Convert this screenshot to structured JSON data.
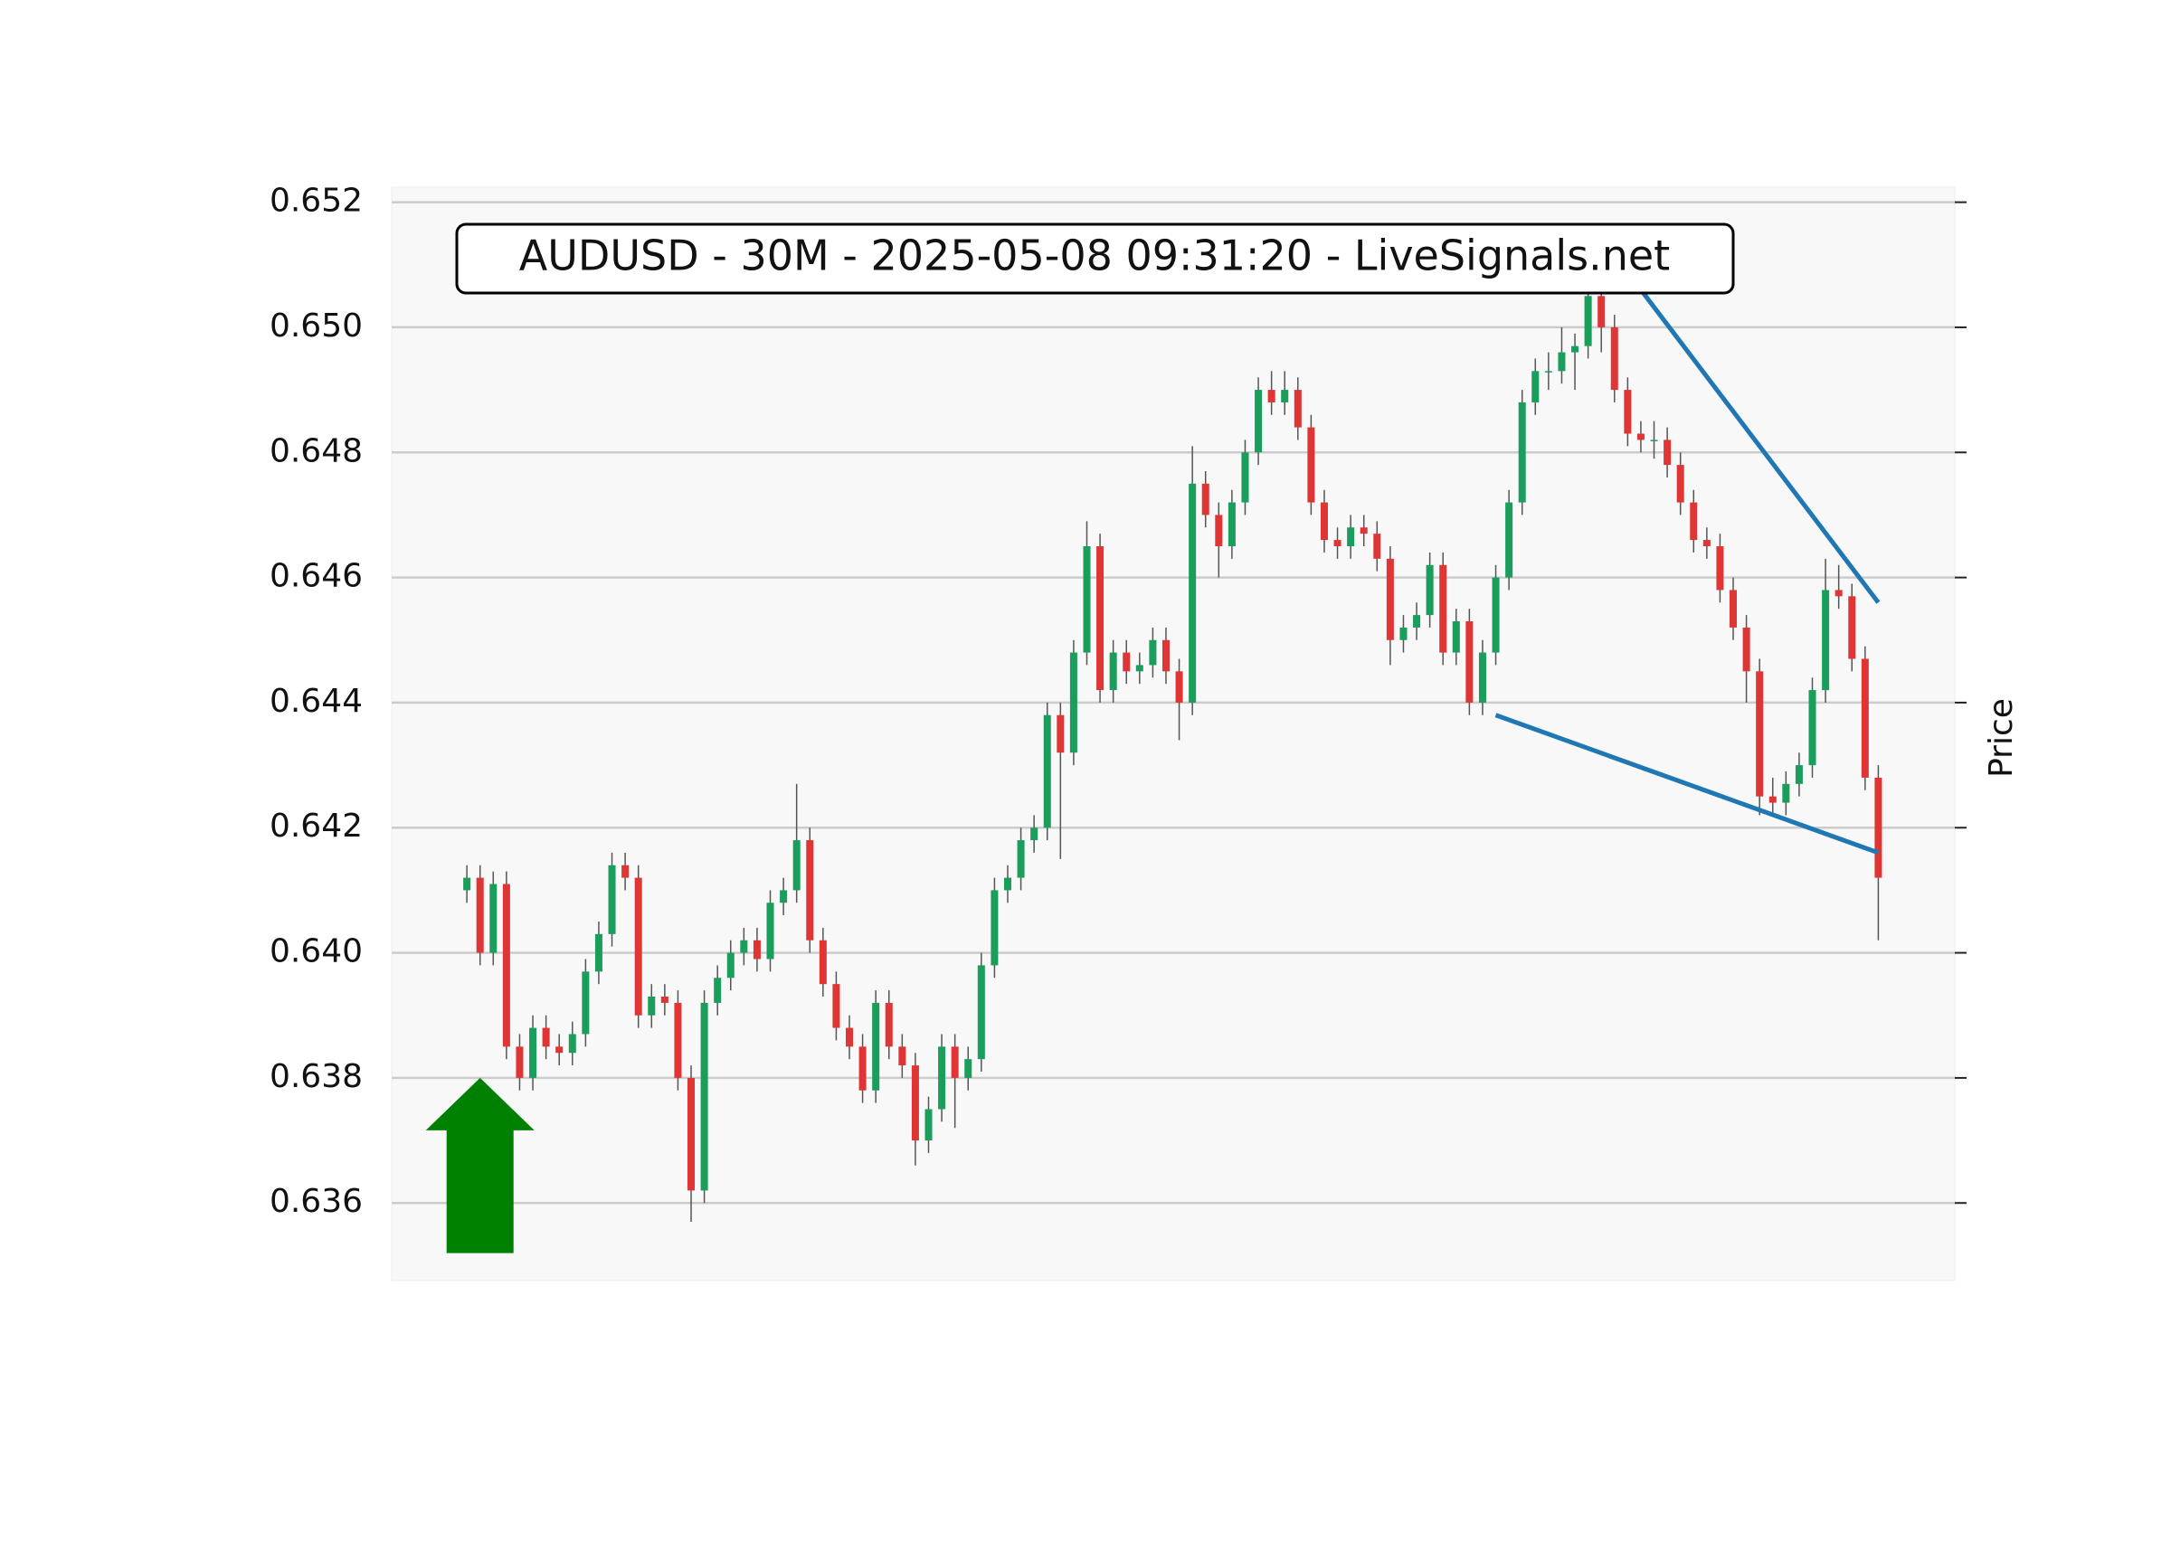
{
  "chart_data": {
    "type": "candlestick",
    "title": "AUDUSD - 30M - 2025-05-08 09:31:20 - LiveSignals.net",
    "y_label": "Price",
    "ylim": [
      0.63476,
      0.65224
    ],
    "yticks": [
      0.636,
      0.638,
      {
        "value": 0.64,
        "label": "0.640"
      },
      0.642,
      0.644,
      0.646,
      0.648,
      {
        "value": 0.65,
        "label": "0.650"
      },
      0.652
    ],
    "xlim": [
      -5.7,
      112.8
    ],
    "grid": true,
    "up_color": "#1a9e5c",
    "down_color": "#e03535",
    "wick_color": "#555555",
    "open": [
      0.641,
      0.6412,
      0.64,
      0.6411,
      0.6385,
      0.638,
      0.6388,
      0.6385,
      0.6384,
      0.6387,
      0.6397,
      0.6403,
      0.6414,
      0.6412,
      0.639,
      0.6393,
      0.6392,
      0.638,
      0.6362,
      0.6392,
      0.6396,
      0.64,
      0.6402,
      0.6399,
      0.6408,
      0.641,
      0.6418,
      0.6402,
      0.6395,
      0.6388,
      0.6385,
      0.6378,
      0.6392,
      0.6385,
      0.6382,
      0.637,
      0.6375,
      0.6385,
      0.638,
      0.6383,
      0.6398,
      0.641,
      0.6412,
      0.6418,
      0.642,
      0.6438,
      0.6432,
      0.6448,
      0.6465,
      0.6442,
      0.6448,
      0.6445,
      0.6446,
      0.645,
      0.6445,
      0.644,
      0.6475,
      0.647,
      0.6465,
      0.6472,
      0.648,
      0.649,
      0.6488,
      0.649,
      0.6484,
      0.6472,
      0.6466,
      0.6465,
      0.6468,
      0.6467,
      0.6463,
      0.645,
      0.6452,
      0.6454,
      0.6462,
      0.6448,
      0.6453,
      0.644,
      0.6448,
      0.646,
      0.6472,
      0.6488,
      0.6493,
      0.6493,
      0.6496,
      0.6497,
      0.6505,
      0.65,
      0.649,
      0.6483,
      0.6482,
      0.6482,
      0.6478,
      0.6472,
      0.6466,
      0.6465,
      0.6458,
      0.6452,
      0.6445,
      0.6425,
      0.6424,
      0.6427,
      0.643,
      0.6442,
      0.6458,
      0.6457,
      0.6447,
      0.6428
    ],
    "high": [
      0.6414,
      0.6414,
      0.6413,
      0.6413,
      0.6387,
      0.639,
      0.639,
      0.6387,
      0.6389,
      0.6399,
      0.6405,
      0.6416,
      0.6416,
      0.6414,
      0.6395,
      0.6395,
      0.6394,
      0.6382,
      0.6394,
      0.6398,
      0.6402,
      0.6404,
      0.6404,
      0.641,
      0.6412,
      0.6427,
      0.642,
      0.6404,
      0.6397,
      0.639,
      0.6387,
      0.6394,
      0.6394,
      0.6387,
      0.6384,
      0.6377,
      0.6387,
      0.6387,
      0.6385,
      0.64,
      0.6412,
      0.6414,
      0.642,
      0.6422,
      0.644,
      0.644,
      0.645,
      0.6469,
      0.6467,
      0.645,
      0.645,
      0.6448,
      0.6452,
      0.6452,
      0.6447,
      0.6481,
      0.6477,
      0.6472,
      0.6474,
      0.6482,
      0.6492,
      0.6493,
      0.6493,
      0.6492,
      0.6486,
      0.6474,
      0.6468,
      0.647,
      0.647,
      0.6469,
      0.6465,
      0.6454,
      0.6456,
      0.6464,
      0.6464,
      0.6455,
      0.6455,
      0.645,
      0.6462,
      0.6474,
      0.649,
      0.6495,
      0.6496,
      0.65,
      0.6499,
      0.651,
      0.6508,
      0.6502,
      0.6492,
      0.6485,
      0.6485,
      0.6484,
      0.648,
      0.6474,
      0.6468,
      0.6467,
      0.646,
      0.6454,
      0.6447,
      0.6428,
      0.6429,
      0.6432,
      0.6444,
      0.6463,
      0.6462,
      0.6459,
      0.6449,
      0.643
    ],
    "low": [
      0.6408,
      0.6398,
      0.6398,
      0.6383,
      0.6378,
      0.6378,
      0.6383,
      0.6382,
      0.6382,
      0.6385,
      0.6395,
      0.6401,
      0.641,
      0.6388,
      0.6388,
      0.639,
      0.6378,
      0.6357,
      0.636,
      0.639,
      0.6394,
      0.6398,
      0.6397,
      0.6397,
      0.6406,
      0.6408,
      0.64,
      0.6393,
      0.6386,
      0.6383,
      0.6376,
      0.6376,
      0.6383,
      0.638,
      0.6366,
      0.6368,
      0.6373,
      0.6372,
      0.6378,
      0.6381,
      0.6396,
      0.6408,
      0.641,
      0.6416,
      0.6418,
      0.6415,
      0.643,
      0.6446,
      0.644,
      0.644,
      0.6443,
      0.6443,
      0.6444,
      0.6443,
      0.6434,
      0.6438,
      0.6468,
      0.646,
      0.6463,
      0.647,
      0.6478,
      0.6486,
      0.6486,
      0.6482,
      0.647,
      0.6464,
      0.6463,
      0.6463,
      0.6465,
      0.6461,
      0.6446,
      0.6448,
      0.645,
      0.6452,
      0.6446,
      0.6446,
      0.6438,
      0.6438,
      0.6446,
      0.6458,
      0.647,
      0.6486,
      0.649,
      0.6491,
      0.649,
      0.6495,
      0.6496,
      0.6488,
      0.6481,
      0.648,
      0.6479,
      0.6476,
      0.647,
      0.6464,
      0.6463,
      0.6456,
      0.645,
      0.644,
      0.6422,
      0.6422,
      0.6422,
      0.6425,
      0.6428,
      0.644,
      0.6455,
      0.6445,
      0.6426,
      0.6402
    ],
    "close": [
      0.6412,
      0.64,
      0.6411,
      0.6385,
      0.638,
      0.6388,
      0.6385,
      0.6384,
      0.6387,
      0.6397,
      0.6403,
      0.6414,
      0.6412,
      0.639,
      0.6393,
      0.6392,
      0.638,
      0.6362,
      0.6392,
      0.6396,
      0.64,
      0.6402,
      0.6399,
      0.6408,
      0.641,
      0.6418,
      0.6402,
      0.6395,
      0.6388,
      0.6385,
      0.6378,
      0.6392,
      0.6385,
      0.6382,
      0.637,
      0.6375,
      0.6385,
      0.638,
      0.6383,
      0.6398,
      0.641,
      0.6412,
      0.6418,
      0.642,
      0.6438,
      0.6432,
      0.6448,
      0.6465,
      0.6442,
      0.6448,
      0.6445,
      0.6446,
      0.645,
      0.6445,
      0.644,
      0.6475,
      0.647,
      0.6465,
      0.6472,
      0.648,
      0.649,
      0.6488,
      0.649,
      0.6484,
      0.6472,
      0.6466,
      0.6465,
      0.6468,
      0.6467,
      0.6463,
      0.645,
      0.6452,
      0.6454,
      0.6462,
      0.6448,
      0.6453,
      0.644,
      0.6448,
      0.646,
      0.6472,
      0.6488,
      0.6493,
      0.6493,
      0.6496,
      0.6497,
      0.6505,
      0.65,
      0.649,
      0.6483,
      0.6482,
      0.6482,
      0.6478,
      0.6472,
      0.6466,
      0.6465,
      0.6458,
      0.6452,
      0.6445,
      0.6425,
      0.6424,
      0.6427,
      0.643,
      0.6442,
      0.6458,
      0.6457,
      0.6447,
      0.6428,
      0.6412
    ],
    "trendlines": [
      {
        "color": "#1f77b4",
        "x": [
          89,
          107
        ],
        "y": [
          0.6506,
          0.6456
        ]
      },
      {
        "color": "#1f77b4",
        "x": [
          78,
          107
        ],
        "y": [
          0.6438,
          0.6416
        ]
      }
    ],
    "arrow": {
      "color": "#008000",
      "x": 1,
      "base": 0.6352,
      "tip": 0.638
    }
  }
}
